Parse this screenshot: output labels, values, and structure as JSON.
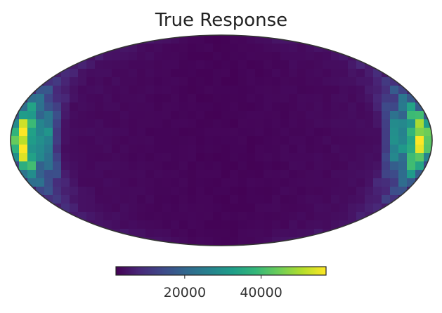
{
  "chart_data": {
    "type": "heatmap",
    "projection": "mollweide",
    "title": "True Response",
    "colormap": "viridis",
    "colormap_stops": [
      "#440154",
      "#482878",
      "#3e4989",
      "#31688e",
      "#26828e",
      "#1f9e89",
      "#35b779",
      "#6ece58",
      "#b5de2b",
      "#fde725"
    ],
    "outline_color": "#333333",
    "colorbar": {
      "orientation": "horizontal",
      "vmin": 2000,
      "vmax": 57000,
      "ticks": [
        20000,
        40000
      ],
      "tick_labels": [
        "20000",
        "40000"
      ]
    },
    "field": {
      "description_of_pattern": "low values across most of the sky, high values in two bands near the left and right limbs",
      "background_value": 4500,
      "center_value": 2500,
      "limb_peak_value": 56000
    }
  }
}
